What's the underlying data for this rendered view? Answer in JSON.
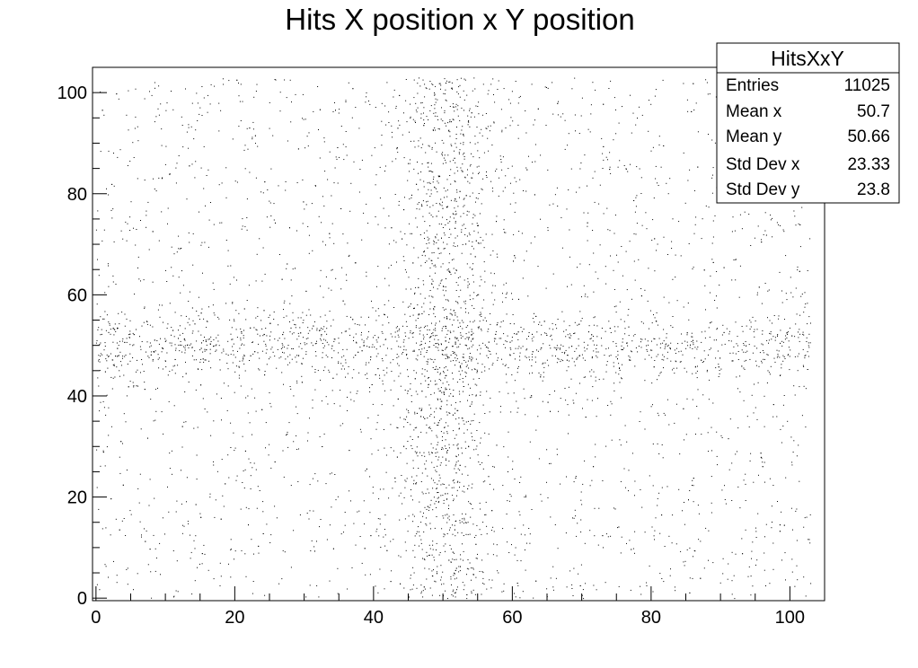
{
  "chart_data": {
    "type": "scatter",
    "title": "Hits X position x Y position",
    "xlabel": "",
    "ylabel": "",
    "xlim": [
      -0.5,
      105
    ],
    "ylim": [
      -0.5,
      105
    ],
    "x_ticks": [
      0,
      20,
      40,
      60,
      80,
      100
    ],
    "y_ticks": [
      0,
      20,
      40,
      60,
      80,
      100
    ],
    "x_tick_labels": [
      "0",
      "20",
      "40",
      "60",
      "80",
      "100"
    ],
    "y_tick_labels": [
      "0",
      "20",
      "40",
      "60",
      "80",
      "100"
    ],
    "grid": false,
    "legend_placement": "top-right",
    "marker_color": "#000000",
    "distribution": {
      "description_components": [
        {
          "kind": "uniform",
          "x_range": [
            0,
            103
          ],
          "y_range": [
            0,
            103
          ]
        },
        {
          "kind": "vertical-band",
          "x_center": 50.5,
          "x_sigma": 3.3,
          "y_range": [
            0,
            103
          ]
        },
        {
          "kind": "horizontal-band",
          "y_center": 50,
          "y_sigma": 3.5,
          "x_range": [
            0,
            103
          ]
        }
      ],
      "rendered_points": 5000
    },
    "stats": {
      "name": "HitsXxY",
      "entries": [
        {
          "label": "Entries",
          "value": "11025"
        },
        {
          "label": "Mean x",
          "value": "50.7"
        },
        {
          "label": "Mean y",
          "value": "50.66"
        },
        {
          "label": "Std Dev x",
          "value": "23.33"
        },
        {
          "label": "Std Dev y",
          "value": "23.8"
        }
      ]
    }
  }
}
